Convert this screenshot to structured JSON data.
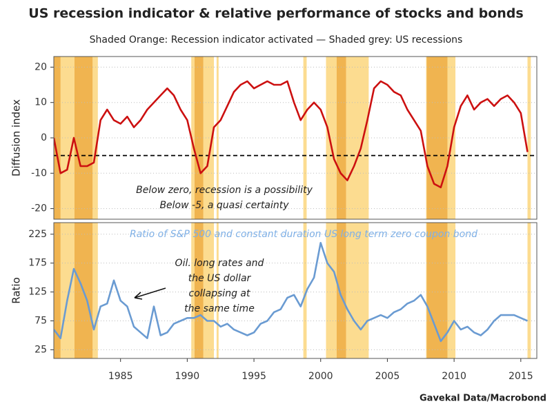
{
  "title": "US recession indicator & relative performance of stocks and bonds",
  "subtitle": "Shaded Orange: Recession indicator activated — Shaded grey: US recessions",
  "source": "Gavekal Data/Macrobond",
  "shading": {
    "indicator": {
      "color": "#fcdc90",
      "periods": [
        [
          1980.1,
          1983.3
        ],
        [
          1990.3,
          1992.0
        ],
        [
          1992.2,
          1992.35
        ],
        [
          1998.7,
          1998.95
        ],
        [
          2000.4,
          2003.6
        ],
        [
          2007.9,
          2010.1
        ],
        [
          2015.5,
          2015.75
        ]
      ]
    },
    "recessions": {
      "color": "#f0b450",
      "periods": [
        [
          1980.0,
          1980.5
        ],
        [
          1981.55,
          1982.9
        ],
        [
          1990.55,
          1991.2
        ],
        [
          2001.2,
          2001.9
        ],
        [
          2007.95,
          2009.5
        ]
      ]
    }
  },
  "chart_data": [
    {
      "type": "line",
      "ylabel": "Diffusion index",
      "color": "#cc1010",
      "xlim": [
        1980,
        2016.2
      ],
      "ylim": [
        -23,
        23
      ],
      "yticks": [
        -20,
        -10,
        0,
        10,
        20
      ],
      "grid": true,
      "reference_line": -5,
      "annotations": [
        "Below zero, recession is a possibility",
        "Below -5, a quasi certainty"
      ],
      "x": [
        1980.0,
        1980.5,
        1981.0,
        1981.5,
        1982.0,
        1982.5,
        1983.0,
        1983.5,
        1984.0,
        1984.5,
        1985.0,
        1985.5,
        1986.0,
        1986.5,
        1987.0,
        1987.5,
        1988.0,
        1988.5,
        1989.0,
        1989.5,
        1990.0,
        1990.5,
        1991.0,
        1991.5,
        1992.0,
        1992.5,
        1993.0,
        1993.5,
        1994.0,
        1994.5,
        1995.0,
        1995.5,
        1996.0,
        1996.5,
        1997.0,
        1997.5,
        1998.0,
        1998.5,
        1999.0,
        1999.5,
        2000.0,
        2000.5,
        2001.0,
        2001.5,
        2002.0,
        2002.5,
        2003.0,
        2003.5,
        2004.0,
        2004.5,
        2005.0,
        2005.5,
        2006.0,
        2006.5,
        2007.0,
        2007.5,
        2008.0,
        2008.5,
        2009.0,
        2009.5,
        2010.0,
        2010.5,
        2011.0,
        2011.5,
        2012.0,
        2012.5,
        2013.0,
        2013.5,
        2014.0,
        2014.5,
        2015.0,
        2015.5
      ],
      "values": [
        0,
        -10,
        -9,
        0,
        -8,
        -8,
        -7,
        5,
        8,
        5,
        4,
        6,
        3,
        5,
        8,
        10,
        12,
        14,
        12,
        8,
        5,
        -3,
        -10,
        -8,
        3,
        5,
        9,
        13,
        15,
        16,
        14,
        15,
        16,
        15,
        15,
        16,
        10,
        5,
        8,
        10,
        8,
        3,
        -6,
        -10,
        -12,
        -8,
        -3,
        5,
        14,
        16,
        15,
        13,
        12,
        8,
        5,
        2,
        -8,
        -13,
        -14,
        -8,
        3,
        9,
        12,
        8,
        10,
        11,
        9,
        11,
        12,
        10,
        7,
        -4
      ]
    },
    {
      "type": "line",
      "ylabel": "Ratio",
      "color": "#6a9bd2",
      "xlim": [
        1980,
        2016.2
      ],
      "xticks": [
        1985,
        1990,
        1995,
        2000,
        2005,
        2010,
        2015
      ],
      "ylim": [
        10,
        245
      ],
      "yticks": [
        25,
        75,
        125,
        175,
        225
      ],
      "grid": true,
      "series_label": "Ratio of S&P 500 and constant duration US long term zero coupon bond",
      "annotation_lines": [
        "Oil. long rates and",
        "the US dollar",
        "collapsing at",
        "the same time"
      ],
      "x": [
        1980.0,
        1980.5,
        1981.0,
        1981.5,
        1982.0,
        1982.5,
        1983.0,
        1983.5,
        1984.0,
        1984.5,
        1985.0,
        1985.5,
        1986.0,
        1986.5,
        1987.0,
        1987.5,
        1988.0,
        1988.5,
        1989.0,
        1989.5,
        1990.0,
        1990.5,
        1991.0,
        1991.5,
        1992.0,
        1992.5,
        1993.0,
        1993.5,
        1994.0,
        1994.5,
        1995.0,
        1995.5,
        1996.0,
        1996.5,
        1997.0,
        1997.5,
        1998.0,
        1998.5,
        1999.0,
        1999.5,
        2000.0,
        2000.5,
        2001.0,
        2001.5,
        2002.0,
        2002.5,
        2003.0,
        2003.5,
        2004.0,
        2004.5,
        2005.0,
        2005.5,
        2006.0,
        2006.5,
        2007.0,
        2007.5,
        2008.0,
        2008.5,
        2009.0,
        2009.5,
        2010.0,
        2010.5,
        2011.0,
        2011.5,
        2012.0,
        2012.5,
        2013.0,
        2013.5,
        2014.0,
        2014.5,
        2015.0,
        2015.5
      ],
      "values": [
        60,
        45,
        110,
        165,
        140,
        110,
        60,
        100,
        105,
        145,
        110,
        100,
        65,
        55,
        45,
        100,
        50,
        55,
        70,
        75,
        80,
        80,
        85,
        75,
        75,
        65,
        70,
        60,
        55,
        50,
        55,
        70,
        75,
        90,
        95,
        115,
        120,
        100,
        130,
        150,
        210,
        175,
        160,
        120,
        95,
        75,
        60,
        75,
        80,
        85,
        80,
        90,
        95,
        105,
        110,
        120,
        100,
        70,
        40,
        55,
        75,
        60,
        65,
        55,
        50,
        60,
        75,
        85,
        85,
        85,
        80,
        75
      ]
    }
  ]
}
